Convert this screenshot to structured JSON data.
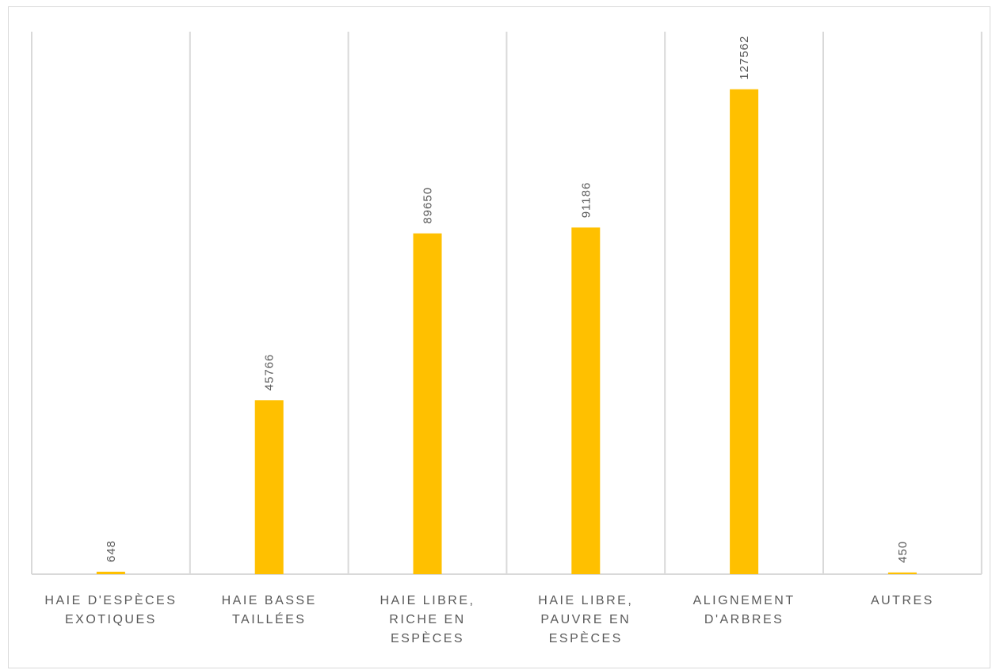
{
  "chart_data": {
    "type": "bar",
    "categories": [
      [
        "HAIE D'ESPÈCES",
        "EXOTIQUES"
      ],
      [
        "HAIE BASSE",
        "TAILLÉES"
      ],
      [
        "HAIE LIBRE,",
        "RICHE EN",
        "ESPÈCES"
      ],
      [
        "HAIE LIBRE,",
        "PAUVRE EN",
        "ESPÈCES"
      ],
      [
        "ALIGNEMENT",
        "D'ARBRES"
      ],
      [
        "AUTRES"
      ]
    ],
    "values": [
      648,
      45766,
      89650,
      91186,
      127562,
      450
    ],
    "data_labels": [
      "648",
      "45766",
      "89650",
      "91186",
      "127562",
      "450"
    ],
    "ylim": [
      0,
      140000
    ],
    "colors": {
      "bar": "#FFC000",
      "grid": "#d9d9d9",
      "text": "#595959"
    },
    "grid": "vertical category separators",
    "legend": "none",
    "title": "",
    "xlabel": "",
    "ylabel": ""
  }
}
